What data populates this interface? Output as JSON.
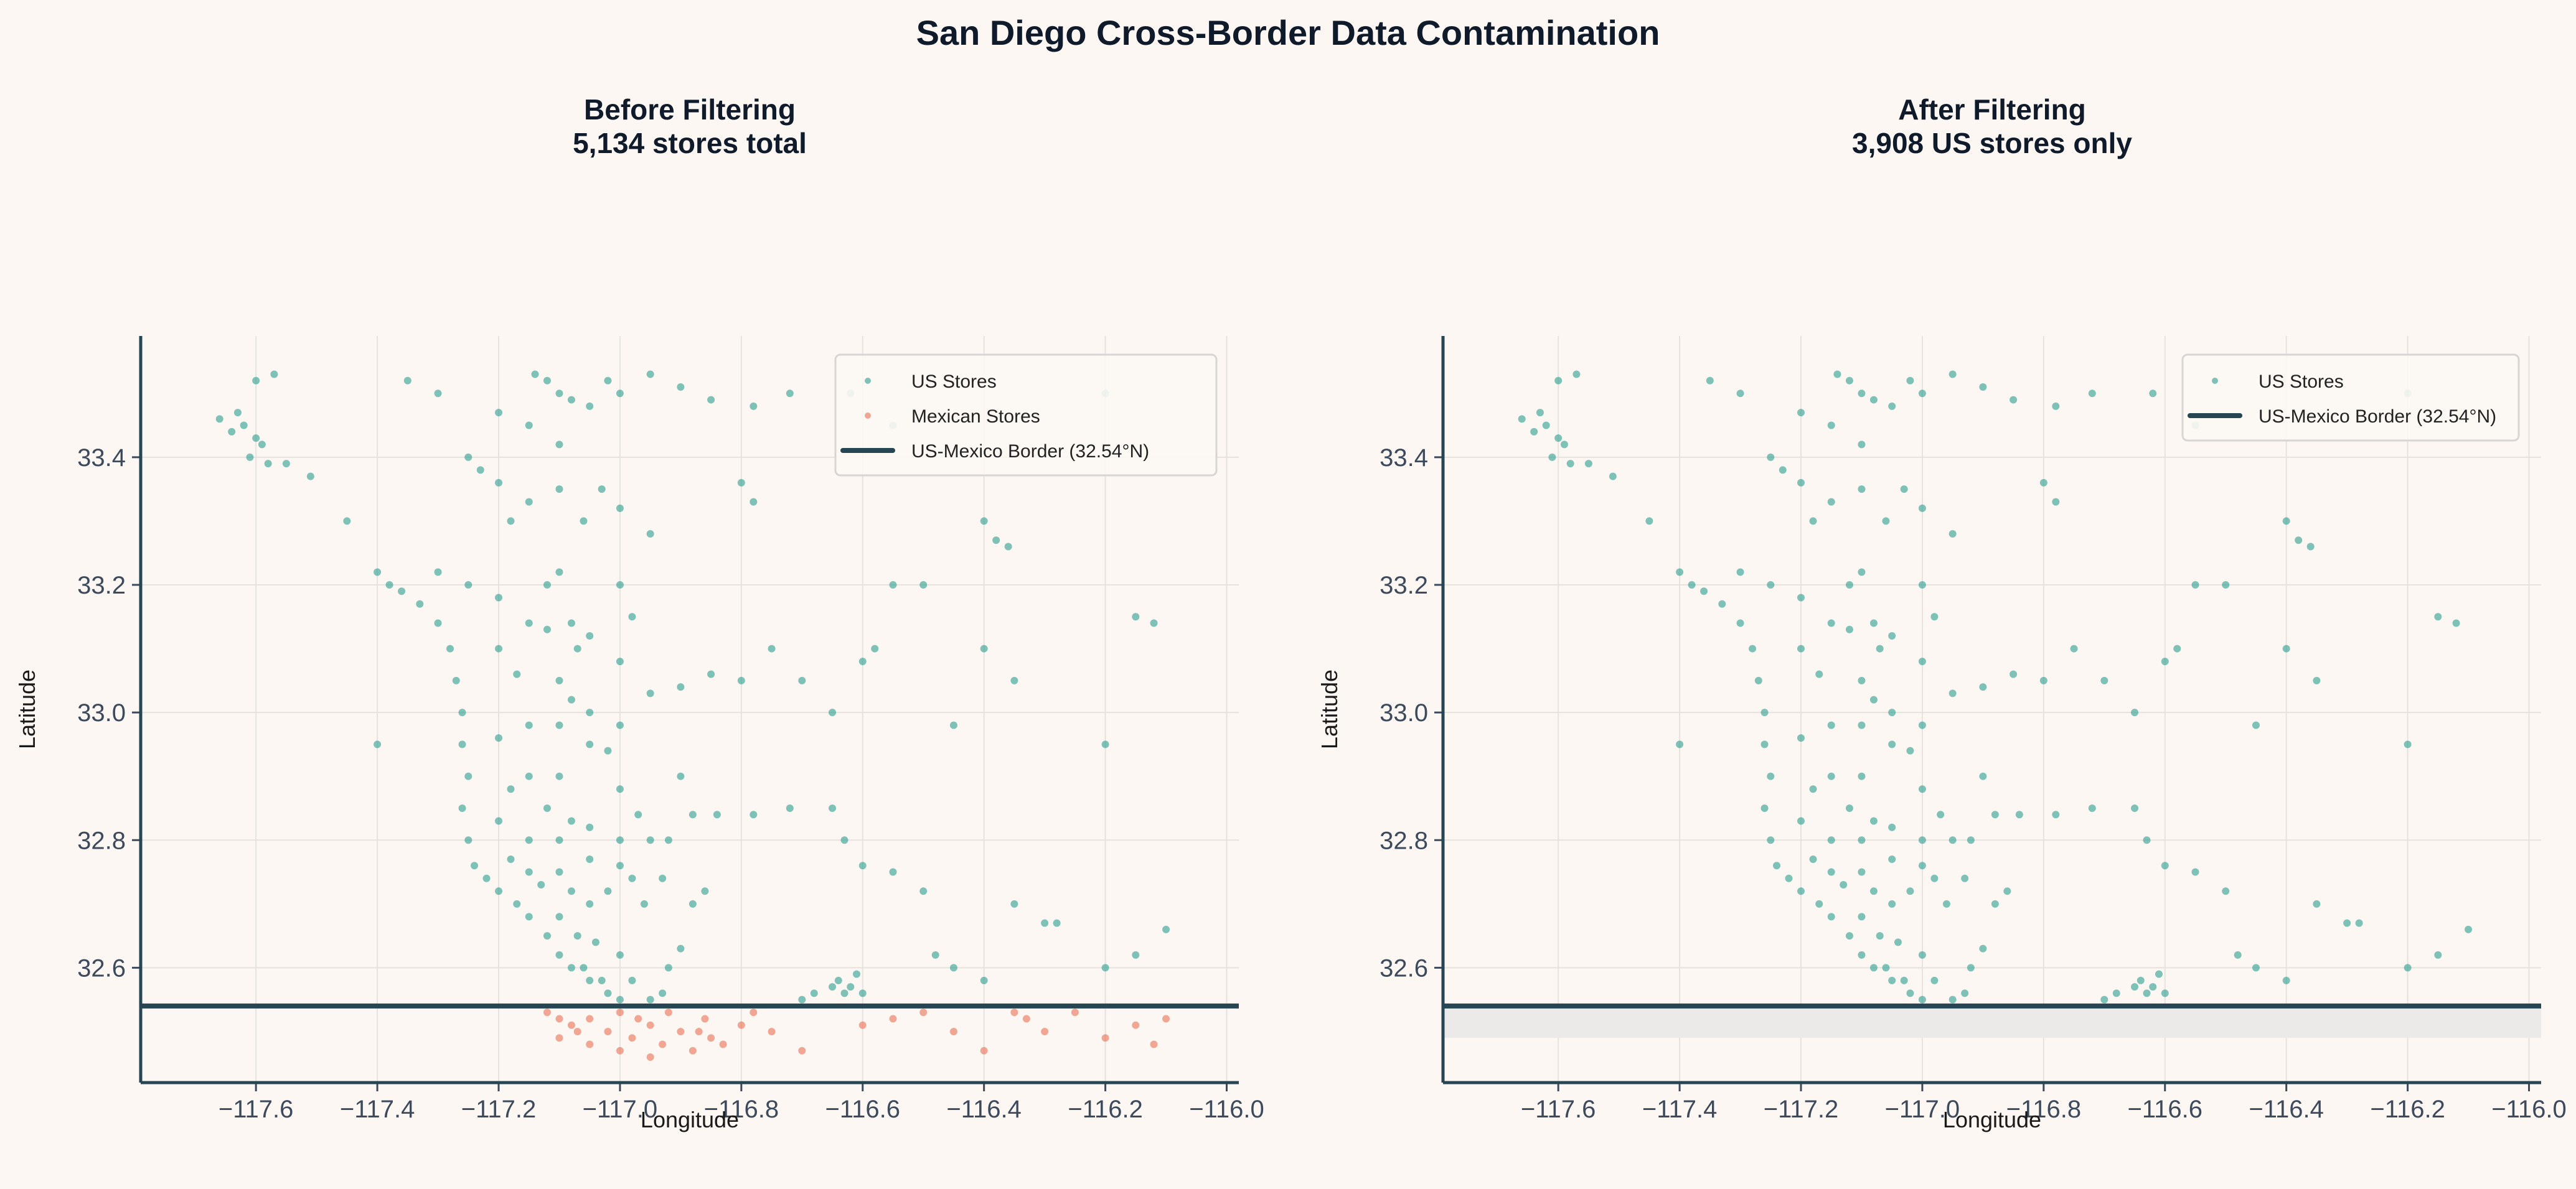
{
  "title": "San Diego Cross-Border Data Contamination",
  "colors": {
    "us": "#2a9d8f",
    "mexican": "#e76f51",
    "border": "#264653",
    "background": "#fcf7f3",
    "excluded_band": "#ece9e9"
  },
  "chart_data": [
    {
      "type": "scatter",
      "title_line1": "Before Filtering",
      "title_line2": "5,134 stores total",
      "xlabel": "Longitude",
      "ylabel": "Latitude",
      "xlim": [
        -117.79,
        -115.98
      ],
      "ylim": [
        32.42,
        33.59
      ],
      "grid": true,
      "legend_placement": "upper right",
      "xticks": [
        -117.6,
        -117.4,
        -117.2,
        -117.0,
        -116.8,
        -116.6,
        -116.4,
        -116.2,
        -116.0
      ],
      "xtick_labels": [
        "−117.6",
        "−117.4",
        "−117.2",
        "−117.0",
        "−116.8",
        "−116.6",
        "−116.4",
        "−116.2",
        "−116.0"
      ],
      "yticks": [
        32.6,
        32.8,
        33.0,
        33.2,
        33.4
      ],
      "ytick_labels": [
        "32.6",
        "32.8",
        "33.0",
        "33.2",
        "33.4"
      ],
      "legend": [
        "US Stores",
        "Mexican Stores",
        "US-Mexico Border (32.54°N)"
      ],
      "border_lat": 32.54,
      "show_mexican": true
    },
    {
      "type": "scatter",
      "title_line1": "After Filtering",
      "title_line2": "3,908 US stores only",
      "xlabel": "Longitude",
      "ylabel": "Latitude",
      "xlim": [
        -117.79,
        -115.98
      ],
      "ylim": [
        32.42,
        33.59
      ],
      "grid": true,
      "legend_placement": "upper right",
      "xticks": [
        -117.6,
        -117.4,
        -117.2,
        -117.0,
        -116.8,
        -116.6,
        -116.4,
        -116.2,
        -116.0
      ],
      "xtick_labels": [
        "−117.6",
        "−117.4",
        "−117.2",
        "−117.0",
        "−116.8",
        "−116.6",
        "−116.4",
        "−116.2",
        "−116.0"
      ],
      "yticks": [
        32.6,
        32.8,
        33.0,
        33.2,
        33.4
      ],
      "ytick_labels": [
        "32.6",
        "32.8",
        "33.0",
        "33.2",
        "33.4"
      ],
      "legend": [
        "US Stores",
        "US-Mexico Border (32.54°N)"
      ],
      "border_lat": 32.54,
      "excluded_band": [
        32.49,
        32.54
      ],
      "show_mexican": false
    }
  ],
  "us_points": [
    [
      -117.66,
      33.46
    ],
    [
      -117.64,
      33.44
    ],
    [
      -117.62,
      33.45
    ],
    [
      -117.6,
      33.43
    ],
    [
      -117.59,
      33.42
    ],
    [
      -117.61,
      33.4
    ],
    [
      -117.58,
      33.39
    ],
    [
      -117.55,
      33.39
    ],
    [
      -117.51,
      33.37
    ],
    [
      -117.63,
      33.47
    ],
    [
      -117.57,
      33.53
    ],
    [
      -117.6,
      33.52
    ],
    [
      -117.14,
      33.53
    ],
    [
      -117.12,
      33.52
    ],
    [
      -117.1,
      33.5
    ],
    [
      -117.08,
      33.49
    ],
    [
      -117.05,
      33.48
    ],
    [
      -117.02,
      33.52
    ],
    [
      -117.0,
      33.5
    ],
    [
      -116.95,
      33.53
    ],
    [
      -116.9,
      33.51
    ],
    [
      -116.85,
      33.49
    ],
    [
      -116.78,
      33.48
    ],
    [
      -116.72,
      33.5
    ],
    [
      -117.3,
      33.5
    ],
    [
      -117.35,
      33.52
    ],
    [
      -117.2,
      33.47
    ],
    [
      -117.25,
      33.4
    ],
    [
      -117.23,
      33.38
    ],
    [
      -117.2,
      33.36
    ],
    [
      -117.15,
      33.33
    ],
    [
      -117.18,
      33.3
    ],
    [
      -117.1,
      33.35
    ],
    [
      -117.06,
      33.3
    ],
    [
      -117.0,
      33.32
    ],
    [
      -116.95,
      33.28
    ],
    [
      -116.8,
      33.36
    ],
    [
      -116.78,
      33.33
    ],
    [
      -116.62,
      33.5
    ],
    [
      -116.55,
      33.45
    ],
    [
      -116.4,
      33.3
    ],
    [
      -116.38,
      33.27
    ],
    [
      -116.36,
      33.26
    ],
    [
      -116.2,
      33.5
    ],
    [
      -117.45,
      33.3
    ],
    [
      -117.4,
      33.22
    ],
    [
      -117.38,
      33.2
    ],
    [
      -117.36,
      33.19
    ],
    [
      -117.33,
      33.17
    ],
    [
      -117.3,
      33.14
    ],
    [
      -117.28,
      33.1
    ],
    [
      -117.27,
      33.05
    ],
    [
      -117.26,
      33.0
    ],
    [
      -117.26,
      32.95
    ],
    [
      -117.25,
      32.9
    ],
    [
      -117.26,
      32.85
    ],
    [
      -117.25,
      32.8
    ],
    [
      -117.24,
      32.76
    ],
    [
      -117.22,
      32.74
    ],
    [
      -117.2,
      32.72
    ],
    [
      -117.17,
      32.7
    ],
    [
      -117.15,
      32.68
    ],
    [
      -117.12,
      32.65
    ],
    [
      -117.1,
      32.62
    ],
    [
      -117.08,
      32.6
    ],
    [
      -117.05,
      32.58
    ],
    [
      -117.02,
      32.56
    ],
    [
      -117.3,
      33.22
    ],
    [
      -117.25,
      33.2
    ],
    [
      -117.2,
      33.18
    ],
    [
      -117.15,
      33.14
    ],
    [
      -117.12,
      33.13
    ],
    [
      -117.08,
      33.14
    ],
    [
      -117.05,
      33.12
    ],
    [
      -117.07,
      33.1
    ],
    [
      -117.2,
      33.1
    ],
    [
      -117.17,
      33.06
    ],
    [
      -117.1,
      33.05
    ],
    [
      -117.08,
      33.02
    ],
    [
      -117.05,
      33.0
    ],
    [
      -117.1,
      32.98
    ],
    [
      -117.15,
      32.98
    ],
    [
      -117.2,
      32.96
    ],
    [
      -117.05,
      32.95
    ],
    [
      -117.02,
      32.94
    ],
    [
      -117.0,
      32.98
    ],
    [
      -116.95,
      33.03
    ],
    [
      -116.9,
      33.04
    ],
    [
      -116.85,
      33.06
    ],
    [
      -116.8,
      33.05
    ],
    [
      -117.15,
      32.9
    ],
    [
      -117.1,
      32.9
    ],
    [
      -117.18,
      32.88
    ],
    [
      -117.12,
      32.85
    ],
    [
      -117.08,
      32.83
    ],
    [
      -117.2,
      32.83
    ],
    [
      -117.15,
      32.8
    ],
    [
      -117.1,
      32.8
    ],
    [
      -117.05,
      32.82
    ],
    [
      -117.0,
      32.8
    ],
    [
      -116.95,
      32.8
    ],
    [
      -116.92,
      32.8
    ],
    [
      -116.97,
      32.84
    ],
    [
      -117.0,
      32.76
    ],
    [
      -117.05,
      32.77
    ],
    [
      -117.1,
      32.75
    ],
    [
      -117.15,
      32.75
    ],
    [
      -117.18,
      32.77
    ],
    [
      -117.13,
      32.73
    ],
    [
      -117.08,
      32.72
    ],
    [
      -117.05,
      32.7
    ],
    [
      -117.02,
      32.72
    ],
    [
      -116.98,
      32.74
    ],
    [
      -116.96,
      32.7
    ],
    [
      -116.93,
      32.74
    ],
    [
      -117.1,
      32.68
    ],
    [
      -117.07,
      32.65
    ],
    [
      -117.04,
      32.64
    ],
    [
      -117.0,
      32.62
    ],
    [
      -117.06,
      32.6
    ],
    [
      -117.03,
      32.58
    ],
    [
      -116.98,
      32.58
    ],
    [
      -116.95,
      32.55
    ],
    [
      -116.93,
      32.56
    ],
    [
      -117.0,
      32.55
    ],
    [
      -116.92,
      32.6
    ],
    [
      -116.9,
      32.63
    ],
    [
      -116.88,
      32.7
    ],
    [
      -116.86,
      32.72
    ],
    [
      -116.84,
      32.84
    ],
    [
      -116.88,
      32.84
    ],
    [
      -117.0,
      33.08
    ],
    [
      -117.12,
      33.2
    ],
    [
      -117.1,
      33.22
    ],
    [
      -117.0,
      33.2
    ],
    [
      -116.98,
      33.15
    ],
    [
      -117.03,
      33.35
    ],
    [
      -117.1,
      33.42
    ],
    [
      -117.15,
      33.45
    ],
    [
      -116.78,
      32.84
    ],
    [
      -116.72,
      32.85
    ],
    [
      -116.65,
      32.85
    ],
    [
      -116.63,
      32.8
    ],
    [
      -116.6,
      32.76
    ],
    [
      -116.55,
      32.75
    ],
    [
      -116.5,
      32.72
    ],
    [
      -116.48,
      32.62
    ],
    [
      -116.45,
      32.6
    ],
    [
      -116.35,
      32.7
    ],
    [
      -116.3,
      32.67
    ],
    [
      -116.28,
      32.67
    ],
    [
      -116.2,
      32.6
    ],
    [
      -116.15,
      32.62
    ],
    [
      -116.1,
      32.66
    ],
    [
      -116.4,
      32.58
    ],
    [
      -116.65,
      32.57
    ],
    [
      -116.63,
      32.56
    ],
    [
      -116.62,
      32.57
    ],
    [
      -116.6,
      32.56
    ],
    [
      -116.64,
      32.58
    ],
    [
      -116.61,
      32.59
    ],
    [
      -116.7,
      32.55
    ],
    [
      -116.68,
      32.56
    ],
    [
      -116.55,
      33.2
    ],
    [
      -116.5,
      33.2
    ],
    [
      -116.4,
      33.1
    ],
    [
      -116.35,
      33.05
    ],
    [
      -116.15,
      33.15
    ],
    [
      -116.12,
      33.14
    ],
    [
      -116.2,
      32.95
    ],
    [
      -116.58,
      33.1
    ],
    [
      -116.6,
      33.08
    ],
    [
      -116.65,
      33.0
    ],
    [
      -116.7,
      33.05
    ],
    [
      -116.75,
      33.1
    ],
    [
      -116.45,
      32.98
    ],
    [
      -117.4,
      32.95
    ],
    [
      -117.0,
      32.88
    ],
    [
      -116.9,
      32.9
    ]
  ],
  "mexican_points": [
    [
      -117.12,
      32.53
    ],
    [
      -117.1,
      32.52
    ],
    [
      -117.08,
      32.51
    ],
    [
      -117.05,
      32.52
    ],
    [
      -117.02,
      32.5
    ],
    [
      -117.0,
      32.53
    ],
    [
      -116.98,
      32.49
    ],
    [
      -116.95,
      32.51
    ],
    [
      -116.93,
      32.48
    ],
    [
      -116.9,
      32.5
    ],
    [
      -116.88,
      32.47
    ],
    [
      -116.85,
      32.49
    ],
    [
      -116.83,
      32.48
    ],
    [
      -116.86,
      32.52
    ],
    [
      -116.92,
      32.53
    ],
    [
      -117.05,
      32.48
    ],
    [
      -117.1,
      32.49
    ],
    [
      -117.0,
      32.47
    ],
    [
      -116.95,
      32.46
    ],
    [
      -116.8,
      32.51
    ],
    [
      -116.78,
      32.53
    ],
    [
      -116.75,
      32.5
    ],
    [
      -116.7,
      32.47
    ],
    [
      -116.6,
      32.51
    ],
    [
      -116.55,
      32.52
    ],
    [
      -116.5,
      32.53
    ],
    [
      -116.45,
      32.5
    ],
    [
      -116.35,
      32.53
    ],
    [
      -116.33,
      32.52
    ],
    [
      -116.3,
      32.5
    ],
    [
      -116.25,
      32.53
    ],
    [
      -116.2,
      32.49
    ],
    [
      -116.15,
      32.51
    ],
    [
      -116.1,
      32.52
    ],
    [
      -116.4,
      32.47
    ],
    [
      -116.12,
      32.48
    ],
    [
      -116.97,
      32.52
    ],
    [
      -116.87,
      32.5
    ],
    [
      -117.07,
      32.5
    ]
  ]
}
